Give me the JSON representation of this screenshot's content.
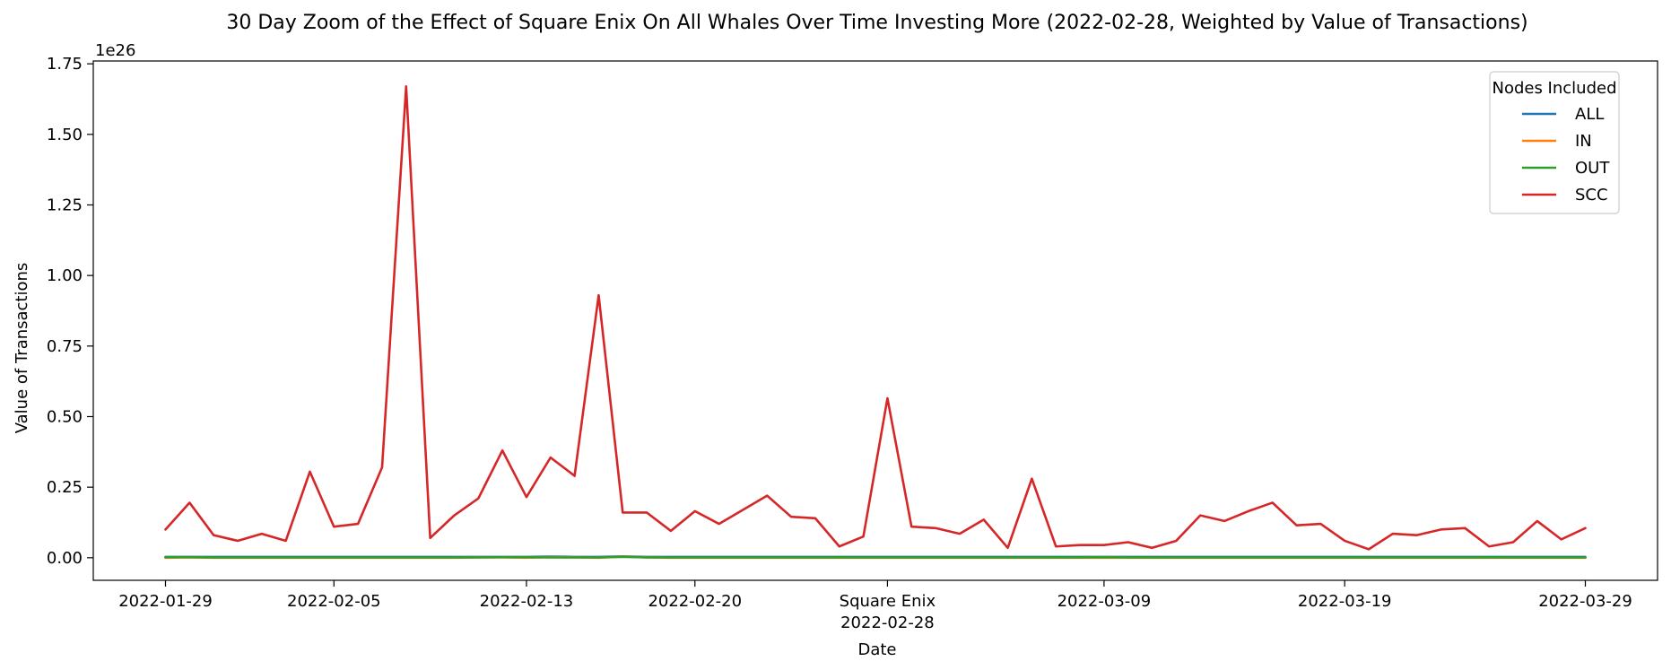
{
  "chart_data": {
    "type": "line",
    "title": "30 Day Zoom of the Effect of Square Enix On All Whales Over Time Investing More (2022-02-28, Weighted by Value of Transactions)",
    "xlabel": "Date",
    "ylabel": "Value of Transactions",
    "y_scale_note": "1e26",
    "y_multiplier": 1e+26,
    "ylim": [
      -0.08,
      1.76
    ],
    "yticks": [
      0.0,
      0.25,
      0.5,
      0.75,
      1.0,
      1.25,
      1.5,
      1.75
    ],
    "ytick_labels": [
      "0.00",
      "0.25",
      "0.50",
      "0.75",
      "1.00",
      "1.25",
      "1.50",
      "1.75"
    ],
    "xlim": [
      "2022-01-26",
      "2022-04-01"
    ],
    "xticks": [
      {
        "date": "2022-01-29",
        "label": "2022-01-29"
      },
      {
        "date": "2022-02-05",
        "label": "2022-02-05"
      },
      {
        "date": "2022-02-13",
        "label": "2022-02-13"
      },
      {
        "date": "2022-02-20",
        "label": "2022-02-20"
      },
      {
        "date": "2022-02-28",
        "label": "Square Enix",
        "label2": "2022-02-28"
      },
      {
        "date": "2022-03-09",
        "label": "2022-03-09"
      },
      {
        "date": "2022-03-19",
        "label": "2022-03-19"
      },
      {
        "date": "2022-03-29",
        "label": "2022-03-29"
      }
    ],
    "legend": {
      "title": "Nodes Included",
      "placement": "top-right"
    },
    "grid": false,
    "x": [
      "2022-01-29",
      "2022-01-30",
      "2022-01-31",
      "2022-02-01",
      "2022-02-02",
      "2022-02-03",
      "2022-02-04",
      "2022-02-05",
      "2022-02-06",
      "2022-02-07",
      "2022-02-08",
      "2022-02-09",
      "2022-02-10",
      "2022-02-11",
      "2022-02-12",
      "2022-02-13",
      "2022-02-14",
      "2022-02-15",
      "2022-02-16",
      "2022-02-17",
      "2022-02-18",
      "2022-02-19",
      "2022-02-20",
      "2022-02-21",
      "2022-02-22",
      "2022-02-23",
      "2022-02-24",
      "2022-02-25",
      "2022-02-26",
      "2022-02-27",
      "2022-02-28",
      "2022-03-01",
      "2022-03-02",
      "2022-03-03",
      "2022-03-04",
      "2022-03-05",
      "2022-03-06",
      "2022-03-07",
      "2022-03-08",
      "2022-03-09",
      "2022-03-10",
      "2022-03-11",
      "2022-03-12",
      "2022-03-13",
      "2022-03-14",
      "2022-03-15",
      "2022-03-16",
      "2022-03-17",
      "2022-03-18",
      "2022-03-19",
      "2022-03-20",
      "2022-03-21",
      "2022-03-22",
      "2022-03-23",
      "2022-03-24",
      "2022-03-25",
      "2022-03-26",
      "2022-03-27",
      "2022-03-28",
      "2022-03-29"
    ],
    "series": [
      {
        "name": "ALL",
        "color": "#1f77b4",
        "values": [
          0.003,
          0.003,
          0.003,
          0.003,
          0.003,
          0.003,
          0.003,
          0.003,
          0.003,
          0.003,
          0.003,
          0.003,
          0.003,
          0.003,
          0.003,
          0.003,
          0.004,
          0.003,
          0.003,
          0.005,
          0.003,
          0.003,
          0.003,
          0.003,
          0.003,
          0.003,
          0.003,
          0.003,
          0.003,
          0.003,
          0.003,
          0.003,
          0.003,
          0.003,
          0.003,
          0.003,
          0.003,
          0.003,
          0.003,
          0.003,
          0.003,
          0.003,
          0.003,
          0.003,
          0.003,
          0.003,
          0.003,
          0.003,
          0.003,
          0.003,
          0.003,
          0.003,
          0.003,
          0.003,
          0.003,
          0.003,
          0.003,
          0.003,
          0.003,
          0.003
        ]
      },
      {
        "name": "IN",
        "color": "#ff7f0e",
        "values": [
          0.0,
          0.001,
          0.0,
          0.0,
          0.0,
          0.0,
          0.0,
          0.0,
          0.0,
          0.0,
          0.0,
          0.0,
          0.0,
          0.001,
          0.001,
          0.0,
          0.002,
          0.001,
          0.0,
          0.004,
          0.001,
          0.0,
          0.0,
          0.0,
          0.0,
          0.0,
          0.0,
          0.0,
          0.0,
          0.0,
          0.0,
          0.0,
          0.0,
          0.0,
          0.0,
          0.0,
          0.0,
          0.0,
          0.0,
          0.0,
          0.0,
          0.0,
          0.0,
          0.0,
          0.0,
          0.0,
          0.0,
          0.0,
          0.0,
          0.0,
          0.0,
          0.0,
          0.0,
          0.0,
          0.0,
          0.0,
          0.0,
          0.0,
          0.0,
          0.0
        ]
      },
      {
        "name": "OUT",
        "color": "#2ca02c",
        "values": [
          0.002,
          0.002,
          0.001,
          0.001,
          0.001,
          0.001,
          0.001,
          0.001,
          0.001,
          0.001,
          0.001,
          0.001,
          0.001,
          0.001,
          0.002,
          0.002,
          0.001,
          0.001,
          0.001,
          0.003,
          0.001,
          0.001,
          0.001,
          0.001,
          0.001,
          0.001,
          0.001,
          0.001,
          0.001,
          0.001,
          0.001,
          0.001,
          0.001,
          0.001,
          0.001,
          0.001,
          0.001,
          0.001,
          0.001,
          0.002,
          0.001,
          0.001,
          0.001,
          0.001,
          0.001,
          0.001,
          0.001,
          0.001,
          0.001,
          0.001,
          0.001,
          0.001,
          0.001,
          0.001,
          0.001,
          0.001,
          0.001,
          0.001,
          0.001,
          0.001
        ]
      },
      {
        "name": "SCC",
        "color": "#d62728",
        "values": [
          0.1,
          0.195,
          0.08,
          0.06,
          0.085,
          0.06,
          0.305,
          0.11,
          0.12,
          0.32,
          1.67,
          0.07,
          0.15,
          0.21,
          0.38,
          0.215,
          0.355,
          0.29,
          0.93,
          0.16,
          0.16,
          0.095,
          0.165,
          0.12,
          0.17,
          0.22,
          0.145,
          0.14,
          0.04,
          0.075,
          0.565,
          0.11,
          0.105,
          0.085,
          0.135,
          0.035,
          0.28,
          0.04,
          0.045,
          0.045,
          0.055,
          0.035,
          0.06,
          0.15,
          0.13,
          0.165,
          0.195,
          0.115,
          0.12,
          0.06,
          0.03,
          0.085,
          0.08,
          0.1,
          0.105,
          0.04,
          0.055,
          0.13,
          0.065,
          0.105
        ]
      }
    ]
  }
}
